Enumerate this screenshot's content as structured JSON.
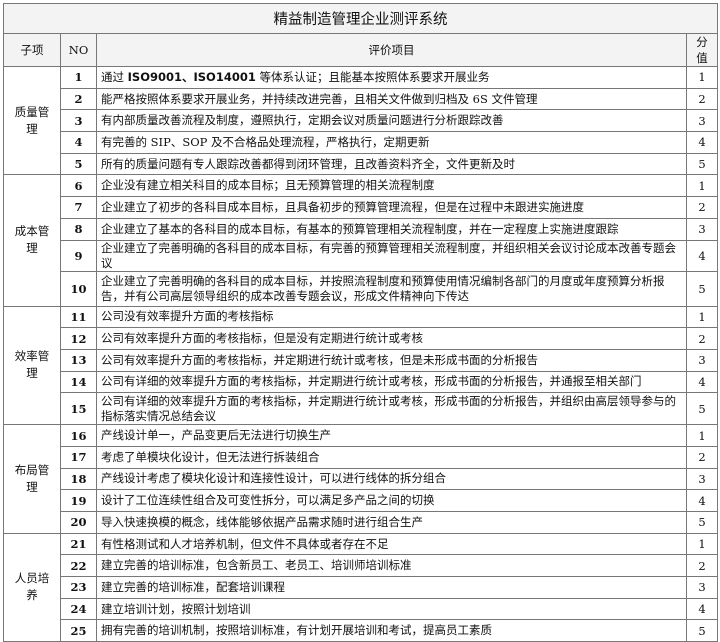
{
  "title": "精益制造管理企业测评系统",
  "headers": {
    "category": "子项",
    "no": "NO",
    "item": "评价项目",
    "score": "分值"
  },
  "groups": [
    {
      "name": "质量管理",
      "rows": [
        {
          "no": "1",
          "segments": [
            {
              "t": "通过 "
            },
            {
              "t": "ISO9001、ISO14001",
              "b": true
            },
            {
              "t": " 等体系认证；且能基本按照体系要求开展业务"
            }
          ],
          "score": "1"
        },
        {
          "no": "2",
          "segments": [
            {
              "t": "能严格按照体系要求开展业务，并持续改进完善，且相关文件做到归档及 6S 文件管理"
            }
          ],
          "score": "2"
        },
        {
          "no": "3",
          "segments": [
            {
              "t": "有内部质量改善流程及制度，遵照执行，定期会议对质量问题进行分析跟踪改善"
            }
          ],
          "score": "3"
        },
        {
          "no": "4",
          "segments": [
            {
              "t": "有完善的 SIP、SOP 及不合格品处理流程，严格执行，定期更新"
            }
          ],
          "score": "4"
        },
        {
          "no": "5",
          "segments": [
            {
              "t": "所有的质量问题有专人跟踪改善都得到闭环管理，且改善资料齐全，文件更新及时"
            }
          ],
          "score": "5"
        }
      ]
    },
    {
      "name": "成本管理",
      "rows": [
        {
          "no": "6",
          "segments": [
            {
              "t": "企业没有建立相关科目的成本目标；且无预算管理的相关流程制度"
            }
          ],
          "score": "1"
        },
        {
          "no": "7",
          "segments": [
            {
              "t": "企业建立了初步的各科目成本目标，且具备初步的预算管理流程，但是在过程中未跟进实施进度"
            }
          ],
          "score": "2"
        },
        {
          "no": "8",
          "segments": [
            {
              "t": "企业建立了基本的各科目的成本目标，有基本的预算管理相关流程制度，并在一定程度上实施进度跟踪"
            }
          ],
          "score": "3"
        },
        {
          "no": "9",
          "segments": [
            {
              "t": "企业建立了完善明确的各科目的成本目标，有完善的预算管理相关流程制度，并组织相关会议讨论成本改善专题会议"
            }
          ],
          "score": "4"
        },
        {
          "no": "10",
          "segments": [
            {
              "t": "企业建立了完善明确的各科目的成本目标，并按照流程制度和预算使用情况编制各部门的月度或年度预算分析报告，并有公司高层领导组织的成本改善专题会议，形成文件精神向下传达"
            }
          ],
          "score": "5"
        }
      ]
    },
    {
      "name": "效率管理",
      "rows": [
        {
          "no": "11",
          "segments": [
            {
              "t": "公司没有效率提升方面的考核指标"
            }
          ],
          "score": "1"
        },
        {
          "no": "12",
          "segments": [
            {
              "t": "公司有效率提升方面的考核指标，但是没有定期进行统计或考核"
            }
          ],
          "score": "2"
        },
        {
          "no": "13",
          "segments": [
            {
              "t": "公司有效率提升方面的考核指标，并定期进行统计或考核，但是未形成书面的分析报告"
            }
          ],
          "score": "3"
        },
        {
          "no": "14",
          "segments": [
            {
              "t": "公司有详细的效率提升方面的考核指标，并定期进行统计或考核，形成书面的分析报告，并通报至相关部门"
            }
          ],
          "score": "4"
        },
        {
          "no": "15",
          "segments": [
            {
              "t": "公司有详细的效率提升方面的考核指标，并定期进行统计或考核，形成书面的分析报告，并组织由高层领导参与的指标落实情况总结会议"
            }
          ],
          "score": "5"
        }
      ]
    },
    {
      "name": "布局管理",
      "rows": [
        {
          "no": "16",
          "segments": [
            {
              "t": "产线设计单一，产品变更后无法进行切换生产"
            }
          ],
          "score": "1"
        },
        {
          "no": "17",
          "segments": [
            {
              "t": "考虑了单模块化设计，但无法进行拆装组合"
            }
          ],
          "score": "2"
        },
        {
          "no": "18",
          "segments": [
            {
              "t": "产线设计考虑了模块化设计和连接性设计，可以进行线体的拆分组合"
            }
          ],
          "score": "3"
        },
        {
          "no": "19",
          "segments": [
            {
              "t": "设计了工位连续性组合及可变性拆分，可以满足多产品之间的切换"
            }
          ],
          "score": "4"
        },
        {
          "no": "20",
          "segments": [
            {
              "t": "导入快速换模的概念，线体能够依据产品需求随时进行组合生产"
            }
          ],
          "score": "5"
        }
      ]
    },
    {
      "name": "人员培养",
      "rows": [
        {
          "no": "21",
          "segments": [
            {
              "t": "有性格测试和人才培养机制，但文件不具体或者存在不足"
            }
          ],
          "score": "1"
        },
        {
          "no": "22",
          "segments": [
            {
              "t": "建立完善的培训标准，包含新员工、老员工、培训师培训标准"
            }
          ],
          "score": "2"
        },
        {
          "no": "23",
          "segments": [
            {
              "t": "建立完善的培训标准，配套培训课程"
            }
          ],
          "score": "3"
        },
        {
          "no": "24",
          "segments": [
            {
              "t": "建立培训计划，按照计划培训"
            }
          ],
          "score": "4"
        },
        {
          "no": "25",
          "segments": [
            {
              "t": "拥有完善的培训机制，按照培训标准，有计划开展培训和考试，提高员工素质"
            }
          ],
          "score": "5"
        }
      ]
    }
  ]
}
